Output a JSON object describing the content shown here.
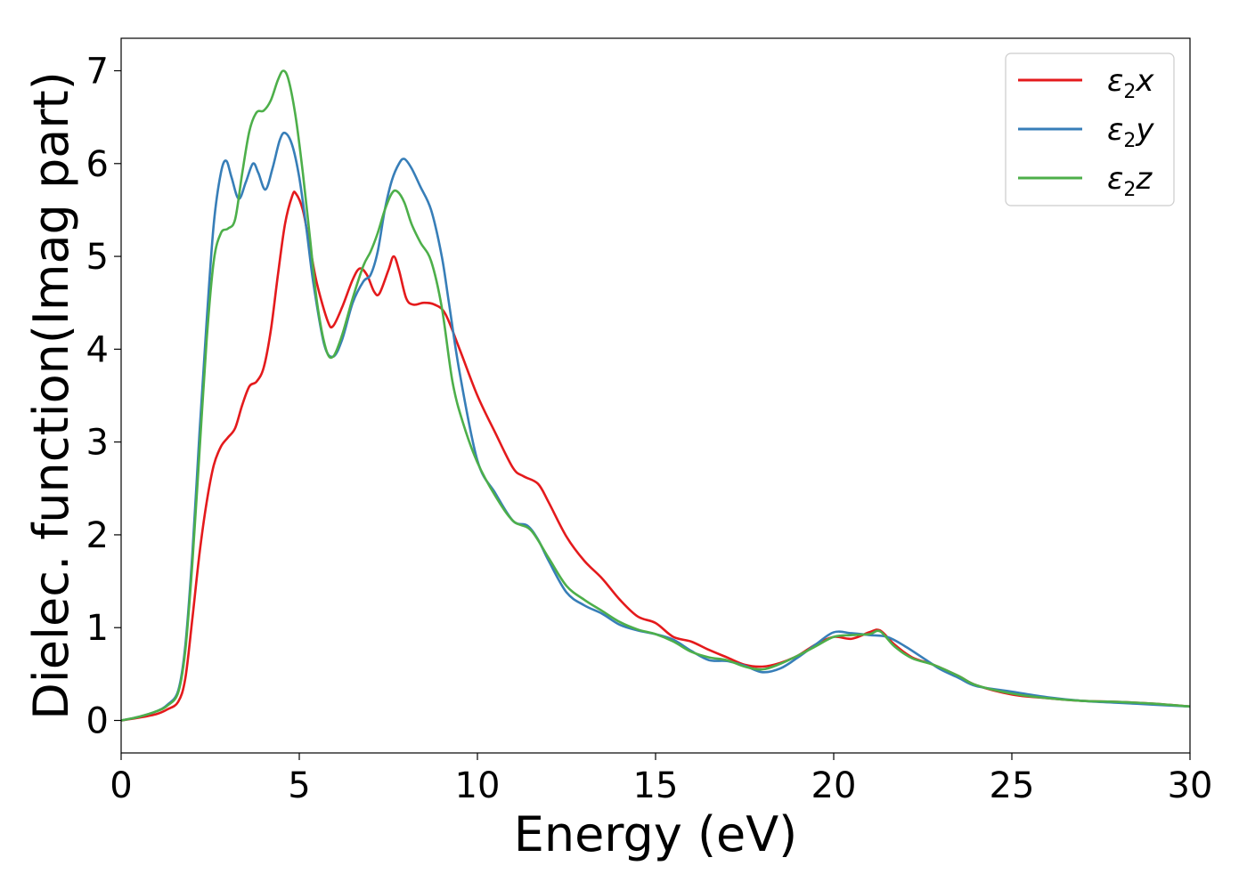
{
  "chart_data": {
    "type": "line",
    "title": "",
    "xlabel": "Energy (eV)",
    "ylabel": "Dielec. function(Imag part)",
    "xlim": [
      0,
      30
    ],
    "ylim": [
      -0.35,
      7.35
    ],
    "xticks": [
      0,
      5,
      10,
      15,
      20,
      25,
      30
    ],
    "xtick_labels": [
      "0",
      "5",
      "10",
      "15",
      "20",
      "25",
      "30"
    ],
    "yticks": [
      0,
      1,
      2,
      3,
      4,
      5,
      6,
      7
    ],
    "ytick_labels": [
      "0",
      "1",
      "2",
      "3",
      "4",
      "5",
      "6",
      "7"
    ],
    "grid": false,
    "legend_position": "top-right",
    "series": [
      {
        "name": "ε2x",
        "legend_base": "ε",
        "legend_sub": "2",
        "legend_suffix": "x",
        "color": "#e41a1c",
        "points": [
          [
            0,
            0
          ],
          [
            0.5,
            0.03
          ],
          [
            1.0,
            0.07
          ],
          [
            1.3,
            0.12
          ],
          [
            1.6,
            0.2
          ],
          [
            1.8,
            0.45
          ],
          [
            2.0,
            1.1
          ],
          [
            2.2,
            1.8
          ],
          [
            2.4,
            2.35
          ],
          [
            2.6,
            2.75
          ],
          [
            2.8,
            2.95
          ],
          [
            3.0,
            3.05
          ],
          [
            3.2,
            3.15
          ],
          [
            3.4,
            3.4
          ],
          [
            3.6,
            3.6
          ],
          [
            3.8,
            3.65
          ],
          [
            4.0,
            3.8
          ],
          [
            4.2,
            4.2
          ],
          [
            4.4,
            4.8
          ],
          [
            4.6,
            5.35
          ],
          [
            4.8,
            5.65
          ],
          [
            4.9,
            5.68
          ],
          [
            5.1,
            5.5
          ],
          [
            5.3,
            5.1
          ],
          [
            5.5,
            4.7
          ],
          [
            5.8,
            4.3
          ],
          [
            5.95,
            4.25
          ],
          [
            6.2,
            4.45
          ],
          [
            6.5,
            4.75
          ],
          [
            6.7,
            4.87
          ],
          [
            6.9,
            4.8
          ],
          [
            7.1,
            4.62
          ],
          [
            7.25,
            4.6
          ],
          [
            7.5,
            4.85
          ],
          [
            7.65,
            5.0
          ],
          [
            7.8,
            4.85
          ],
          [
            8.0,
            4.55
          ],
          [
            8.2,
            4.48
          ],
          [
            8.5,
            4.5
          ],
          [
            8.8,
            4.48
          ],
          [
            9.1,
            4.38
          ],
          [
            9.5,
            4.0
          ],
          [
            10.0,
            3.5
          ],
          [
            10.5,
            3.1
          ],
          [
            11.0,
            2.72
          ],
          [
            11.3,
            2.63
          ],
          [
            11.7,
            2.55
          ],
          [
            12.0,
            2.35
          ],
          [
            12.5,
            1.98
          ],
          [
            13.0,
            1.72
          ],
          [
            13.5,
            1.53
          ],
          [
            14.0,
            1.3
          ],
          [
            14.5,
            1.12
          ],
          [
            15.0,
            1.05
          ],
          [
            15.5,
            0.9
          ],
          [
            16.0,
            0.85
          ],
          [
            16.5,
            0.76
          ],
          [
            17.0,
            0.68
          ],
          [
            17.5,
            0.6
          ],
          [
            18.0,
            0.58
          ],
          [
            18.5,
            0.62
          ],
          [
            19.0,
            0.7
          ],
          [
            19.5,
            0.82
          ],
          [
            20.0,
            0.9
          ],
          [
            20.5,
            0.88
          ],
          [
            21.0,
            0.95
          ],
          [
            21.3,
            0.97
          ],
          [
            21.7,
            0.82
          ],
          [
            22.2,
            0.68
          ],
          [
            22.8,
            0.6
          ],
          [
            23.5,
            0.48
          ],
          [
            24.0,
            0.38
          ],
          [
            25.0,
            0.28
          ],
          [
            26.0,
            0.24
          ],
          [
            27.0,
            0.21
          ],
          [
            28.0,
            0.2
          ],
          [
            29.0,
            0.18
          ],
          [
            30.0,
            0.15
          ]
        ]
      },
      {
        "name": "ε2y",
        "legend_base": "ε",
        "legend_sub": "2",
        "legend_suffix": "y",
        "color": "#377eb8",
        "points": [
          [
            0,
            0
          ],
          [
            0.5,
            0.04
          ],
          [
            1.0,
            0.1
          ],
          [
            1.3,
            0.17
          ],
          [
            1.6,
            0.32
          ],
          [
            1.8,
            0.8
          ],
          [
            2.0,
            1.8
          ],
          [
            2.2,
            3.1
          ],
          [
            2.4,
            4.3
          ],
          [
            2.6,
            5.35
          ],
          [
            2.8,
            5.9
          ],
          [
            2.95,
            6.03
          ],
          [
            3.1,
            5.85
          ],
          [
            3.3,
            5.62
          ],
          [
            3.5,
            5.8
          ],
          [
            3.7,
            6.0
          ],
          [
            3.85,
            5.9
          ],
          [
            4.05,
            5.72
          ],
          [
            4.25,
            5.95
          ],
          [
            4.45,
            6.25
          ],
          [
            4.6,
            6.33
          ],
          [
            4.8,
            6.2
          ],
          [
            5.0,
            5.85
          ],
          [
            5.2,
            5.3
          ],
          [
            5.4,
            4.7
          ],
          [
            5.7,
            4.05
          ],
          [
            5.95,
            3.92
          ],
          [
            6.2,
            4.1
          ],
          [
            6.5,
            4.5
          ],
          [
            6.8,
            4.73
          ],
          [
            7.0,
            4.8
          ],
          [
            7.2,
            5.05
          ],
          [
            7.4,
            5.5
          ],
          [
            7.6,
            5.82
          ],
          [
            7.8,
            6.0
          ],
          [
            7.95,
            6.05
          ],
          [
            8.15,
            5.95
          ],
          [
            8.4,
            5.75
          ],
          [
            8.7,
            5.5
          ],
          [
            9.0,
            5.0
          ],
          [
            9.2,
            4.5
          ],
          [
            9.5,
            3.75
          ],
          [
            10.0,
            2.8
          ],
          [
            10.5,
            2.45
          ],
          [
            11.0,
            2.15
          ],
          [
            11.4,
            2.1
          ],
          [
            11.7,
            1.95
          ],
          [
            12.0,
            1.72
          ],
          [
            12.5,
            1.38
          ],
          [
            13.0,
            1.24
          ],
          [
            13.5,
            1.15
          ],
          [
            14.0,
            1.03
          ],
          [
            14.5,
            0.97
          ],
          [
            15.0,
            0.93
          ],
          [
            15.5,
            0.87
          ],
          [
            16.0,
            0.75
          ],
          [
            16.5,
            0.65
          ],
          [
            17.0,
            0.64
          ],
          [
            17.5,
            0.59
          ],
          [
            18.0,
            0.52
          ],
          [
            18.5,
            0.56
          ],
          [
            19.0,
            0.68
          ],
          [
            19.5,
            0.82
          ],
          [
            20.0,
            0.95
          ],
          [
            20.5,
            0.94
          ],
          [
            21.0,
            0.92
          ],
          [
            21.5,
            0.9
          ],
          [
            22.0,
            0.8
          ],
          [
            22.6,
            0.65
          ],
          [
            23.0,
            0.55
          ],
          [
            23.5,
            0.46
          ],
          [
            24.0,
            0.37
          ],
          [
            25.0,
            0.31
          ],
          [
            26.0,
            0.25
          ],
          [
            27.0,
            0.21
          ],
          [
            28.0,
            0.19
          ],
          [
            29.0,
            0.17
          ],
          [
            30.0,
            0.15
          ]
        ]
      },
      {
        "name": "ε2z",
        "legend_base": "ε",
        "legend_sub": "2",
        "legend_suffix": "z",
        "color": "#4daf4a",
        "points": [
          [
            0,
            0
          ],
          [
            0.5,
            0.04
          ],
          [
            1.0,
            0.1
          ],
          [
            1.3,
            0.16
          ],
          [
            1.6,
            0.3
          ],
          [
            1.8,
            0.75
          ],
          [
            2.0,
            1.7
          ],
          [
            2.2,
            2.9
          ],
          [
            2.4,
            4.1
          ],
          [
            2.6,
            4.95
          ],
          [
            2.8,
            5.25
          ],
          [
            3.0,
            5.3
          ],
          [
            3.2,
            5.4
          ],
          [
            3.4,
            5.9
          ],
          [
            3.6,
            6.35
          ],
          [
            3.8,
            6.55
          ],
          [
            4.0,
            6.57
          ],
          [
            4.2,
            6.68
          ],
          [
            4.4,
            6.9
          ],
          [
            4.55,
            7.0
          ],
          [
            4.7,
            6.9
          ],
          [
            4.9,
            6.5
          ],
          [
            5.1,
            5.9
          ],
          [
            5.3,
            5.2
          ],
          [
            5.5,
            4.5
          ],
          [
            5.75,
            4.0
          ],
          [
            5.95,
            3.92
          ],
          [
            6.2,
            4.15
          ],
          [
            6.5,
            4.55
          ],
          [
            6.8,
            4.9
          ],
          [
            7.0,
            5.05
          ],
          [
            7.2,
            5.25
          ],
          [
            7.4,
            5.5
          ],
          [
            7.6,
            5.68
          ],
          [
            7.75,
            5.7
          ],
          [
            7.95,
            5.58
          ],
          [
            8.15,
            5.35
          ],
          [
            8.4,
            5.15
          ],
          [
            8.7,
            4.95
          ],
          [
            9.0,
            4.45
          ],
          [
            9.3,
            3.65
          ],
          [
            9.6,
            3.2
          ],
          [
            10.0,
            2.78
          ],
          [
            10.5,
            2.42
          ],
          [
            11.0,
            2.15
          ],
          [
            11.5,
            2.05
          ],
          [
            12.0,
            1.75
          ],
          [
            12.5,
            1.45
          ],
          [
            13.0,
            1.3
          ],
          [
            13.5,
            1.18
          ],
          [
            14.0,
            1.06
          ],
          [
            14.5,
            0.98
          ],
          [
            15.0,
            0.93
          ],
          [
            15.5,
            0.85
          ],
          [
            16.0,
            0.74
          ],
          [
            16.5,
            0.68
          ],
          [
            17.0,
            0.65
          ],
          [
            17.5,
            0.58
          ],
          [
            18.0,
            0.55
          ],
          [
            18.5,
            0.61
          ],
          [
            19.0,
            0.7
          ],
          [
            19.5,
            0.8
          ],
          [
            20.0,
            0.9
          ],
          [
            20.5,
            0.92
          ],
          [
            21.0,
            0.93
          ],
          [
            21.3,
            0.96
          ],
          [
            21.7,
            0.8
          ],
          [
            22.2,
            0.67
          ],
          [
            22.8,
            0.6
          ],
          [
            23.5,
            0.48
          ],
          [
            24.0,
            0.38
          ],
          [
            25.0,
            0.29
          ],
          [
            26.0,
            0.24
          ],
          [
            27.0,
            0.21
          ],
          [
            28.0,
            0.2
          ],
          [
            29.0,
            0.18
          ],
          [
            30.0,
            0.15
          ]
        ]
      }
    ]
  }
}
